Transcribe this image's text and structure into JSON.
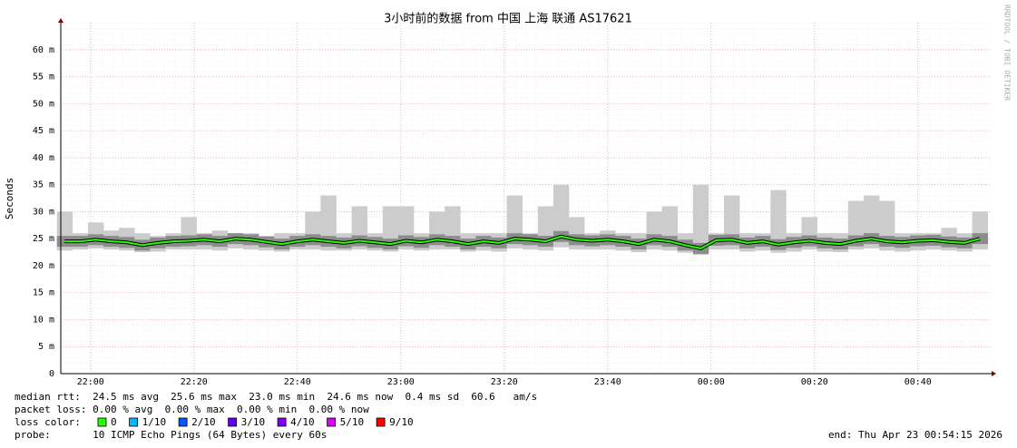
{
  "chart_data": {
    "type": "smokeping",
    "title": "3小时前的数据 from  中国 上海 联通 AS17621",
    "ylabel": "Seconds",
    "watermark": "RRDTOOL / TOBI OETIKER",
    "ylim": [
      0,
      65
    ],
    "yticks": [
      0,
      {
        "value": 5,
        "label": "5 m"
      },
      {
        "value": 10,
        "label": "10 m"
      },
      {
        "value": 15,
        "label": "15 m"
      },
      {
        "value": 20,
        "label": "20 m"
      },
      {
        "value": 25,
        "label": "25 m"
      },
      {
        "value": 30,
        "label": "30 m"
      },
      {
        "value": 35,
        "label": "35 m"
      },
      {
        "value": 40,
        "label": "40 m"
      },
      {
        "value": 45,
        "label": "45 m"
      },
      {
        "value": 50,
        "label": "50 m"
      },
      {
        "value": 55,
        "label": "55 m"
      },
      {
        "value": 60,
        "label": "60 m"
      }
    ],
    "xlim": [
      "21:54:15",
      "00:54:15"
    ],
    "xticks": [
      "22:00",
      "22:20",
      "22:40",
      "23:00",
      "23:20",
      "23:40",
      "00:00",
      "00:20",
      "00:40"
    ],
    "x": [
      "21:55",
      "21:58",
      "22:01",
      "22:04",
      "22:07",
      "22:10",
      "22:13",
      "22:16",
      "22:19",
      "22:22",
      "22:25",
      "22:28",
      "22:31",
      "22:34",
      "22:37",
      "22:40",
      "22:43",
      "22:46",
      "22:49",
      "22:52",
      "22:55",
      "22:58",
      "23:01",
      "23:04",
      "23:07",
      "23:10",
      "23:13",
      "23:16",
      "23:19",
      "23:22",
      "23:25",
      "23:28",
      "23:31",
      "23:34",
      "23:37",
      "23:40",
      "23:43",
      "23:46",
      "23:49",
      "23:52",
      "23:55",
      "23:58",
      "00:01",
      "00:04",
      "00:07",
      "00:10",
      "00:13",
      "00:16",
      "00:19",
      "00:22",
      "00:25",
      "00:28",
      "00:31",
      "00:34",
      "00:37",
      "00:40",
      "00:43",
      "00:46",
      "00:49",
      "00:52"
    ],
    "median": [
      24.5,
      24.5,
      24.8,
      24.5,
      24.3,
      23.8,
      24.2,
      24.5,
      24.6,
      24.8,
      24.5,
      25.0,
      24.8,
      24.4,
      24.0,
      24.5,
      24.8,
      24.5,
      24.2,
      24.6,
      24.3,
      24.0,
      24.6,
      24.3,
      24.8,
      24.5,
      24.0,
      24.5,
      24.2,
      25.0,
      24.8,
      24.5,
      25.4,
      24.8,
      24.6,
      24.8,
      24.5,
      24.0,
      24.8,
      24.5,
      23.8,
      23.2,
      24.7,
      24.8,
      24.2,
      24.5,
      23.9,
      24.3,
      24.6,
      24.2,
      24.0,
      24.6,
      25.0,
      24.5,
      24.3,
      24.6,
      24.7,
      24.4,
      24.2,
      25.0
    ],
    "smoke_max": [
      30,
      26,
      28,
      26.5,
      27,
      26,
      25.5,
      26,
      29,
      26,
      26.5,
      26,
      26,
      25.5,
      26,
      26,
      30,
      33,
      26,
      31,
      26,
      31,
      31,
      26,
      30,
      31,
      26,
      26,
      26,
      33,
      26,
      31,
      35,
      29,
      26,
      26.5,
      26,
      26,
      30,
      31,
      26,
      35,
      26,
      33,
      26,
      26,
      34,
      26,
      29,
      26,
      26,
      32,
      33,
      32,
      26,
      26,
      26,
      27,
      26,
      30
    ],
    "smoke_min": [
      22.8,
      23,
      23.2,
      23,
      22.8,
      22.5,
      22.6,
      23,
      23,
      23,
      22.8,
      23.2,
      23,
      22.8,
      22.6,
      23,
      23,
      22.8,
      22.8,
      23,
      22.8,
      22.6,
      23,
      22.8,
      23,
      23,
      22.6,
      22.8,
      22.6,
      23.2,
      23,
      22.8,
      23.4,
      23,
      23,
      23,
      22.8,
      22.5,
      23,
      22.8,
      22.4,
      22,
      23,
      23,
      22.6,
      22.8,
      22.4,
      22.6,
      23,
      22.6,
      22.5,
      23,
      23.2,
      22.8,
      22.6,
      22.8,
      23,
      22.8,
      22.6,
      23
    ],
    "line_color": "#26ff00",
    "stats": {
      "median_rtt": "median rtt:  24.5 ms avg  25.6 ms max  23.0 ms min  24.6 ms now  0.4 ms sd  60.6   am/s",
      "packet_loss": "packet loss: 0.00 % avg  0.00 % max  0.00 % min  0.00 % now",
      "loss_color_label": "loss color:",
      "probe": "probe:       10 ICMP Echo Pings (64 Bytes) every 60s",
      "end": "end: Thu Apr 23 00:54:15 2026"
    },
    "loss_colors": [
      {
        "label": "0",
        "color": "#26ff00"
      },
      {
        "label": "1/10",
        "color": "#00b8ff"
      },
      {
        "label": "2/10",
        "color": "#0059ff"
      },
      {
        "label": "3/10",
        "color": "#5e00ff"
      },
      {
        "label": "4/10",
        "color": "#7e00ff"
      },
      {
        "label": "5/10",
        "color": "#dd00ff"
      },
      {
        "label": "9/10",
        "color": "#ff0000"
      }
    ]
  }
}
